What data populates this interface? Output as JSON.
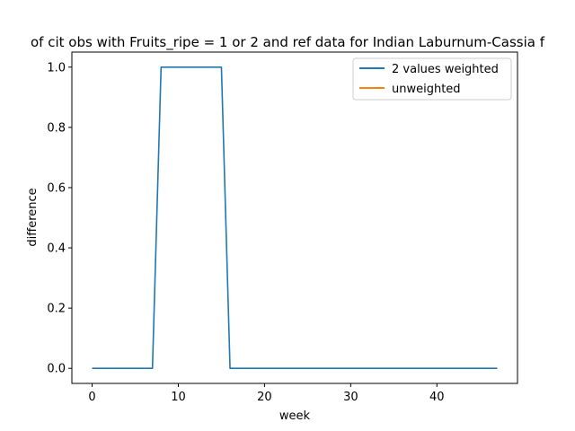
{
  "chart_data": {
    "type": "line",
    "title": "of cit obs with Fruits_ripe = 1 or 2 and ref data for Indian Laburnum-Cassia f",
    "xlabel": "week",
    "ylabel": "difference",
    "xlim": [
      -2.35,
      49.35
    ],
    "ylim": [
      -0.05,
      1.05
    ],
    "xticks": [
      0,
      10,
      20,
      30,
      40
    ],
    "xtick_labels": [
      "0",
      "10",
      "20",
      "30",
      "40"
    ],
    "yticks": [
      0.0,
      0.2,
      0.4,
      0.6,
      0.8,
      1.0
    ],
    "ytick_labels": [
      "0.0",
      "0.2",
      "0.4",
      "0.6",
      "0.8",
      "1.0"
    ],
    "grid": false,
    "legend_position": "top-right",
    "series": [
      {
        "name": "2 values weighted",
        "color": "#1f77b4",
        "x": [
          0,
          1,
          2,
          3,
          4,
          5,
          6,
          7,
          8,
          9,
          10,
          11,
          12,
          13,
          14,
          15,
          16,
          17,
          18,
          19,
          20,
          21,
          22,
          23,
          24,
          25,
          26,
          27,
          28,
          29,
          30,
          31,
          32,
          33,
          34,
          35,
          36,
          37,
          38,
          39,
          40,
          41,
          42,
          43,
          44,
          45,
          46,
          47
        ],
        "y": [
          0,
          0,
          0,
          0,
          0,
          0,
          0,
          0,
          1,
          1,
          1,
          1,
          1,
          1,
          1,
          1,
          0,
          0,
          0,
          0,
          0,
          0,
          0,
          0,
          0,
          0,
          0,
          0,
          0,
          0,
          0,
          0,
          0,
          0,
          0,
          0,
          0,
          0,
          0,
          0,
          0,
          0,
          0,
          0,
          0,
          0,
          0,
          0
        ]
      },
      {
        "name": "unweighted",
        "color": "#ff7f0e",
        "x": [],
        "y": []
      }
    ]
  }
}
